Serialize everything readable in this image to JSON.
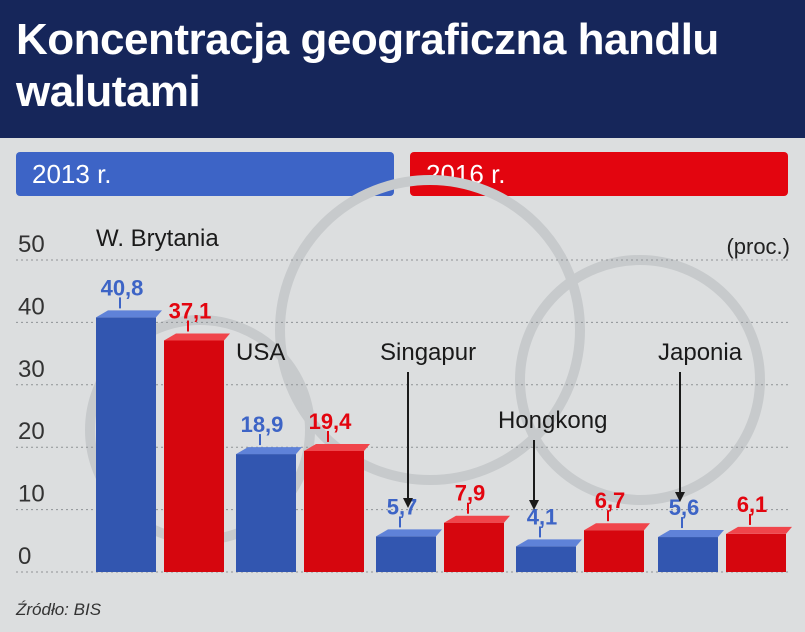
{
  "title": "Koncentracja geograficzna handlu walutami",
  "legend": {
    "a": "2013 r.",
    "b": "2016 r."
  },
  "unit_label": "(proc.)",
  "source": "Źródło: BIS",
  "colors": {
    "header": "#16265a",
    "blue": "#3d64c6",
    "red": "#e3050f"
  },
  "chart_data": {
    "type": "bar",
    "categories": [
      "W. Brytania",
      "USA",
      "Singapur",
      "Hongkong",
      "Japonia"
    ],
    "series": [
      {
        "name": "2013 r.",
        "values": [
          40.8,
          18.9,
          5.7,
          4.1,
          5.6
        ],
        "labels": [
          "40,8",
          "18,9",
          "5,7",
          "4,1",
          "5,6"
        ]
      },
      {
        "name": "2016 r.",
        "values": [
          37.1,
          19.4,
          7.9,
          6.7,
          6.1
        ],
        "labels": [
          "37,1",
          "19,4",
          "7,9",
          "6,7",
          "6,1"
        ]
      }
    ],
    "ylim": [
      0,
      50
    ],
    "yticks": [
      "0",
      "10",
      "20",
      "30",
      "40",
      "50"
    ],
    "grid": true,
    "legend_position": "top"
  }
}
